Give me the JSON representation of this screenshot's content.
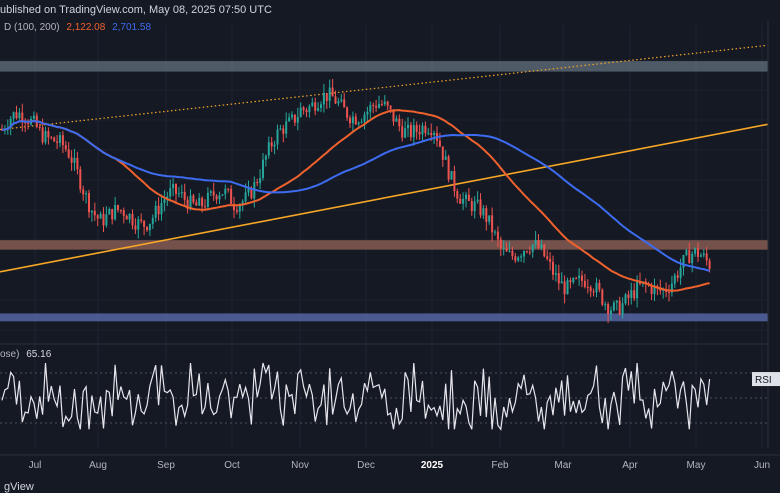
{
  "header": {
    "published": "ublished on TradingView.com, May 08, 2025 07:50 UTC",
    "ma_label": "D (100, 200)",
    "ma100_value": "2,122.08",
    "ma200_value": "2,701.58"
  },
  "rsi": {
    "label": "ose)",
    "value": "65.16",
    "tag": "RSI"
  },
  "footer": {
    "brand": "gView"
  },
  "colors": {
    "background": "#151924",
    "up_candle": "#26a69a",
    "down_candle": "#ef5350",
    "ma100": "#f0622d",
    "ma200": "#3d6cf0",
    "trendline": "#f7a626",
    "resistance_zone": "#9c6a5b",
    "support_zone": "#5c6fb3",
    "top_zone": "#7d8f9a",
    "rsi_line": "#e6e6ec"
  },
  "chart_data": {
    "type": "candlestick",
    "x_axis_ticks": [
      "Jul",
      "Aug",
      "Sep",
      "Oct",
      "Nov",
      "Dec",
      "2025",
      "Feb",
      "Mar",
      "Apr",
      "May",
      "Jun"
    ],
    "price_series_monthly_close_approx": [
      {
        "month": "Jul",
        "price": 3300
      },
      {
        "month": "Aug",
        "price": 2550
      },
      {
        "month": "Sep",
        "price": 2600
      },
      {
        "month": "Oct",
        "price": 2500
      },
      {
        "month": "Nov",
        "price": 3700
      },
      {
        "month": "Dec",
        "price": 3350
      },
      {
        "month": "2025",
        "price": 3300
      },
      {
        "month": "Feb",
        "price": 2200
      },
      {
        "month": "Mar",
        "price": 1800
      },
      {
        "month": "Apr",
        "price": 1800
      },
      {
        "month": "May",
        "price": 1950
      }
    ],
    "indicators": [
      {
        "name": "MA 100",
        "value": 2122.08
      },
      {
        "name": "MA 200",
        "value": 2701.58
      }
    ],
    "horizontal_zones": [
      "top_zone",
      "resistance_zone",
      "support_zone"
    ],
    "rsi": {
      "last_value": 65.16,
      "reference_levels": [
        70,
        50,
        30
      ]
    },
    "grid": true
  }
}
